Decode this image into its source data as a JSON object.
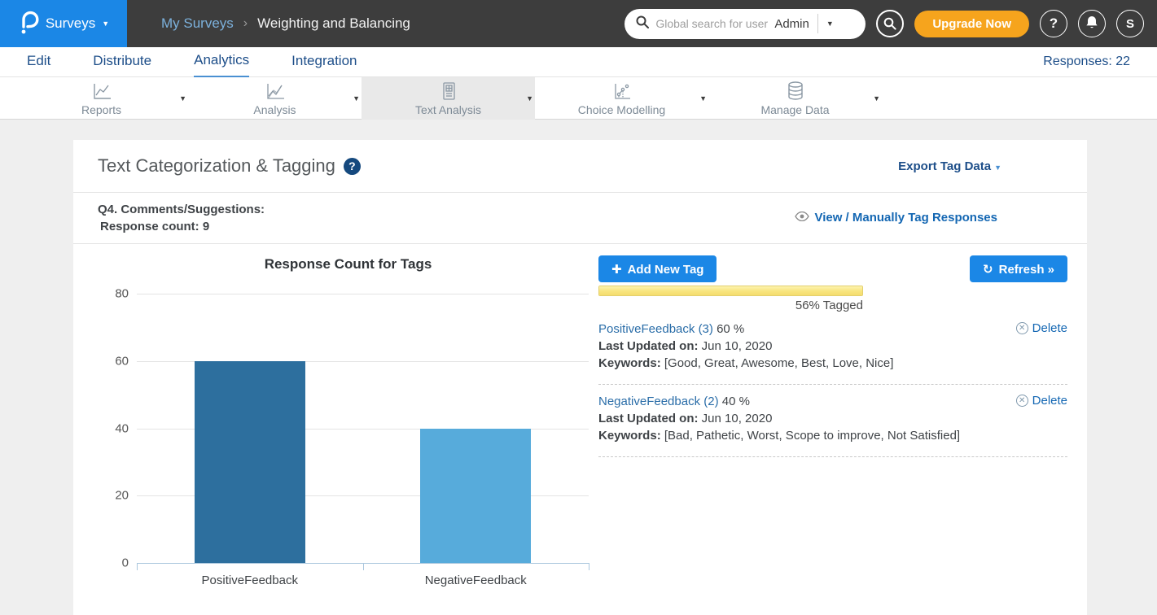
{
  "header": {
    "product": "Surveys",
    "breadcrumb_parent": "My Surveys",
    "breadcrumb_current": "Weighting and Balancing",
    "search_placeholder": "Global search for user",
    "search_scope": "Admin",
    "upgrade_label": "Upgrade Now",
    "help_glyph": "?",
    "avatar_initial": "S"
  },
  "nav": {
    "tabs": [
      "Edit",
      "Distribute",
      "Analytics",
      "Integration"
    ],
    "active_tab": "Analytics",
    "responses_label": "Responses: 22"
  },
  "subnav": {
    "items": [
      {
        "label": "Reports",
        "icon": "line-chart-icon"
      },
      {
        "label": "Analysis",
        "icon": "multi-line-chart-icon"
      },
      {
        "label": "Text Analysis",
        "icon": "document-table-icon",
        "active": true
      },
      {
        "label": "Choice Modelling",
        "icon": "scatter-chart-icon"
      },
      {
        "label": "Manage Data",
        "icon": "database-icon"
      }
    ]
  },
  "panel": {
    "title": "Text Categorization & Tagging",
    "export_label": "Export Tag Data",
    "question_label": "Q4. Comments/Suggestions:",
    "response_count_label": "Response count: 9",
    "view_tag_label": "View / Manually Tag Responses",
    "add_tag_label": "Add New Tag",
    "refresh_label": "Refresh »",
    "tagged_label": "56% Tagged",
    "tags": [
      {
        "name": "PositiveFeedback (3)",
        "percent": "60 %",
        "updated_label": "Last Updated on:",
        "updated_value": "Jun 10, 2020",
        "keywords_label": "Keywords:",
        "keywords_value": "[Good, Great, Awesome, Best, Love, Nice]",
        "delete_label": "Delete"
      },
      {
        "name": "NegativeFeedback (2)",
        "percent": "40 %",
        "updated_label": "Last Updated on:",
        "updated_value": "Jun 10, 2020",
        "keywords_label": "Keywords:",
        "keywords_value": "[Bad, Pathetic, Worst, Scope to improve, Not Satisfied]",
        "delete_label": "Delete"
      }
    ]
  },
  "chart_data": {
    "type": "bar",
    "title": "Response Count for Tags",
    "categories": [
      "PositiveFeedback",
      "NegativeFeedback"
    ],
    "values": [
      60,
      40
    ],
    "ylim": [
      0,
      80
    ],
    "yticks": [
      0,
      20,
      40,
      60,
      80
    ],
    "grid": true,
    "legend": false,
    "bar_colors": [
      "#2d6f9e",
      "#57abdb"
    ],
    "xlabel": "",
    "ylabel": ""
  },
  "colors": {
    "brand_blue": "#1b87e6",
    "header_dark": "#3d3d3d",
    "upgrade_orange": "#f6a41d",
    "navy_text": "#1d4e89",
    "link_blue": "#1467b3",
    "progress_yellow": "#f8e47e",
    "bar_dark": "#2d6f9e",
    "bar_light": "#57abdb"
  }
}
